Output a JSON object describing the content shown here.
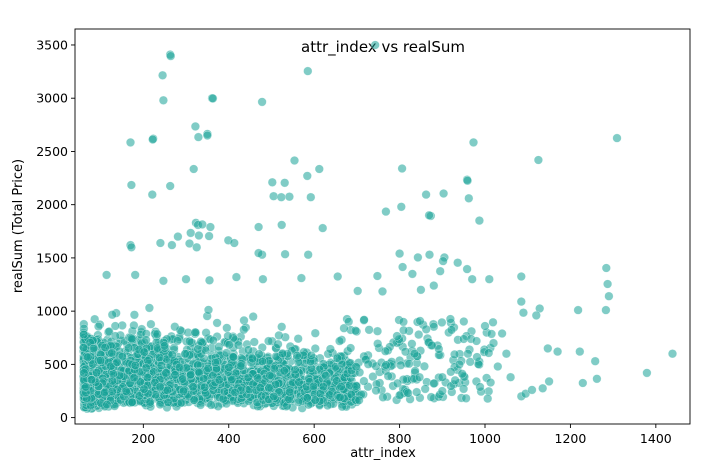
{
  "chart_data": {
    "type": "scatter",
    "title": "attr_index vs realSum",
    "xlabel": "attr_index",
    "ylabel": "realSum (Total Price)",
    "xlim": [
      40,
      1480
    ],
    "ylim": [
      -60,
      3650
    ],
    "x_ticks": [
      "200",
      "400",
      "600",
      "800",
      "1000",
      "1200",
      "1400"
    ],
    "y_ticks": [
      "0",
      "500",
      "1000",
      "1500",
      "2000",
      "2500",
      "3000",
      "3500"
    ],
    "x_tick_values": [
      200,
      400,
      600,
      800,
      1000,
      1200,
      1400
    ],
    "y_tick_values": [
      0,
      500,
      1000,
      1500,
      2000,
      2500,
      3000,
      3500
    ],
    "grid": false,
    "marker_color": "#17a398",
    "marker_opacity": 0.55,
    "points": [
      [
        263,
        3410
      ],
      [
        264,
        3395
      ],
      [
        743,
        3500
      ],
      [
        245,
        3215
      ],
      [
        585,
        3255
      ],
      [
        247,
        2980
      ],
      [
        361,
        3000
      ],
      [
        478,
        2965
      ],
      [
        363,
        2998
      ],
      [
        322,
        2735
      ],
      [
        350,
        2665
      ],
      [
        350,
        2650
      ],
      [
        329,
        2635
      ],
      [
        223,
        2620
      ],
      [
        222,
        2612
      ],
      [
        170,
        2585
      ],
      [
        973,
        2585
      ],
      [
        1309,
        2625
      ],
      [
        1125,
        2420
      ],
      [
        554,
        2415
      ],
      [
        612,
        2335
      ],
      [
        806,
        2340
      ],
      [
        958,
        2235
      ],
      [
        959,
        2225
      ],
      [
        584,
        2270
      ],
      [
        318,
        2335
      ],
      [
        263,
        2175
      ],
      [
        172,
        2185
      ],
      [
        502,
        2210
      ],
      [
        531,
        2205
      ],
      [
        505,
        2080
      ],
      [
        523,
        2070
      ],
      [
        542,
        2075
      ],
      [
        592,
        2070
      ],
      [
        862,
        2095
      ],
      [
        903,
        2105
      ],
      [
        962,
        2060
      ],
      [
        221,
        2095
      ],
      [
        804,
        1980
      ],
      [
        873,
        1895
      ],
      [
        869,
        1900
      ],
      [
        768,
        1935
      ],
      [
        987,
        1850
      ],
      [
        323,
        1830
      ],
      [
        328,
        1810
      ],
      [
        338,
        1815
      ],
      [
        357,
        1790
      ],
      [
        620,
        1780
      ],
      [
        470,
        1790
      ],
      [
        524,
        1810
      ],
      [
        311,
        1735
      ],
      [
        354,
        1705
      ],
      [
        281,
        1700
      ],
      [
        308,
        1635
      ],
      [
        399,
        1665
      ],
      [
        413,
        1640
      ],
      [
        586,
        1530
      ],
      [
        478,
        1530
      ],
      [
        170,
        1620
      ],
      [
        240,
        1640
      ],
      [
        267,
        1620
      ],
      [
        172,
        1600
      ],
      [
        800,
        1540
      ],
      [
        843,
        1505
      ],
      [
        870,
        1530
      ],
      [
        905,
        1505
      ],
      [
        902,
        1470
      ],
      [
        936,
        1455
      ],
      [
        958,
        1395
      ],
      [
        1010,
        1300
      ],
      [
        1284,
        1405
      ],
      [
        807,
        1415
      ],
      [
        532,
        1535
      ],
      [
        470,
        1545
      ],
      [
        330,
        1710
      ],
      [
        325,
        1600
      ],
      [
        114,
        1340
      ],
      [
        181,
        1340
      ],
      [
        247,
        1285
      ],
      [
        300,
        1300
      ],
      [
        355,
        1290
      ],
      [
        418,
        1320
      ],
      [
        480,
        1300
      ],
      [
        570,
        1310
      ],
      [
        655,
        1325
      ],
      [
        748,
        1330
      ],
      [
        830,
        1350
      ],
      [
        895,
        1375
      ],
      [
        970,
        1300
      ],
      [
        1085,
        1325
      ],
      [
        1287,
        1255
      ],
      [
        760,
        1185
      ],
      [
        702,
        1190
      ],
      [
        850,
        1200
      ],
      [
        880,
        1240
      ],
      [
        1128,
        1025
      ],
      [
        1218,
        1010
      ],
      [
        1283,
        1010
      ],
      [
        1290,
        1140
      ],
      [
        1085,
        1090
      ],
      [
        1090,
        985
      ],
      [
        1120,
        960
      ],
      [
        1147,
        650
      ],
      [
        1222,
        620
      ],
      [
        1229,
        325
      ],
      [
        1262,
        365
      ],
      [
        1379,
        420
      ],
      [
        1439,
        600
      ],
      [
        1258,
        530
      ],
      [
        1170,
        620
      ],
      [
        1013,
        330
      ],
      [
        1030,
        480
      ],
      [
        1050,
        600
      ],
      [
        1085,
        200
      ],
      [
        1095,
        225
      ],
      [
        1110,
        260
      ],
      [
        1135,
        275
      ],
      [
        1150,
        340
      ],
      [
        1060,
        380
      ],
      [
        1020,
        700
      ],
      [
        1040,
        790
      ],
      [
        1000,
        860
      ],
      [
        980,
        720
      ],
      [
        960,
        600
      ],
      [
        940,
        500
      ],
      [
        920,
        430
      ],
      [
        900,
        380
      ],
      [
        880,
        320
      ],
      [
        860,
        270
      ],
      [
        840,
        240
      ],
      [
        820,
        230
      ],
      [
        800,
        210
      ],
      [
        900,
        250
      ],
      [
        950,
        270
      ],
      [
        930,
        350
      ]
    ]
  }
}
